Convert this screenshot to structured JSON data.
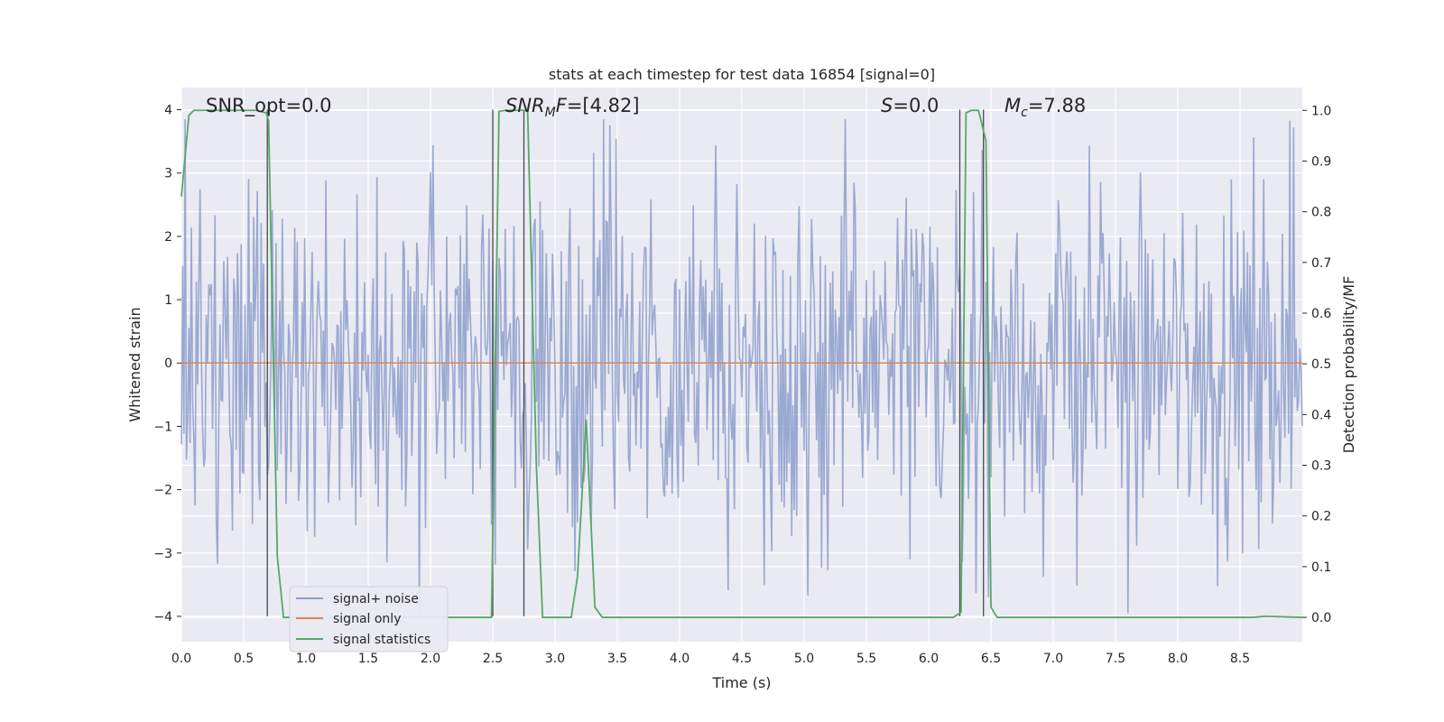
{
  "chart_data": {
    "type": "line",
    "title": "stats at each timestep for test data 16854 [signal=0]",
    "xlabel": "Time (s)",
    "ylabel": "Whitened strain",
    "y2label": "Detection probability/MF",
    "xlim": [
      0.0,
      9.0
    ],
    "ylim": [
      -4.4,
      4.35
    ],
    "y2lim": [
      -0.048,
      1.045
    ],
    "xticks": [
      "0.0",
      "0.5",
      "1.0",
      "1.5",
      "2.0",
      "2.5",
      "3.0",
      "3.5",
      "4.0",
      "4.5",
      "5.0",
      "5.5",
      "6.0",
      "6.5",
      "7.0",
      "7.5",
      "8.0",
      "8.5"
    ],
    "yticks": [
      "4",
      "3",
      "2",
      "1",
      "0",
      "−1",
      "−2",
      "−3",
      "−4"
    ],
    "y2ticks": [
      "1.0",
      "0.9",
      "0.8",
      "0.7",
      "0.6",
      "0.5",
      "0.4",
      "0.3",
      "0.2",
      "0.1",
      "0.0"
    ],
    "grid": true,
    "legend": {
      "position": "lower-left",
      "entries": [
        "signal+ noise",
        "signal only",
        "signal statistics"
      ]
    },
    "annotations": [
      {
        "text": "SNR_opt=0.0",
        "x": 0.2
      },
      {
        "text": "SNR_M F=[4.82]",
        "x": 2.6
      },
      {
        "text": "S=0.0",
        "x": 5.6
      },
      {
        "text": "M_c=7.88",
        "x": 6.6
      }
    ],
    "series": [
      {
        "name": "signal+ noise",
        "color": "#8c9ecb",
        "noise_stats": {
          "typical_abs": 1.6,
          "max": 3.85,
          "min": -4.0,
          "sample_spacing_s": 0.01
        }
      },
      {
        "name": "signal only",
        "color": "#dd8452",
        "x": [
          0.0,
          9.0
        ],
        "y": [
          0.0,
          0.0
        ]
      },
      {
        "name": "signal statistics",
        "color": "#55a868",
        "x": [
          0.0,
          0.06,
          0.1,
          0.6,
          0.68,
          0.7,
          0.77,
          0.82,
          2.49,
          2.55,
          2.6,
          2.78,
          2.85,
          2.9,
          3.13,
          3.18,
          3.25,
          3.32,
          3.38,
          6.2,
          6.26,
          6.3,
          6.34,
          6.4,
          6.46,
          6.5,
          6.55,
          8.6,
          8.7,
          9.0
        ],
        "y": [
          0.83,
          0.99,
          1.0,
          1.0,
          0.995,
          0.98,
          0.12,
          0.0,
          0.0,
          0.998,
          1.0,
          1.0,
          0.3,
          0.0,
          0.0,
          0.08,
          0.39,
          0.02,
          0.0,
          0.0,
          0.01,
          0.995,
          1.0,
          1.0,
          0.94,
          0.02,
          0.0,
          0.0,
          0.002,
          0.0
        ]
      }
    ],
    "vlines": [
      0.69,
      2.5,
      2.75,
      6.25,
      6.44
    ]
  }
}
